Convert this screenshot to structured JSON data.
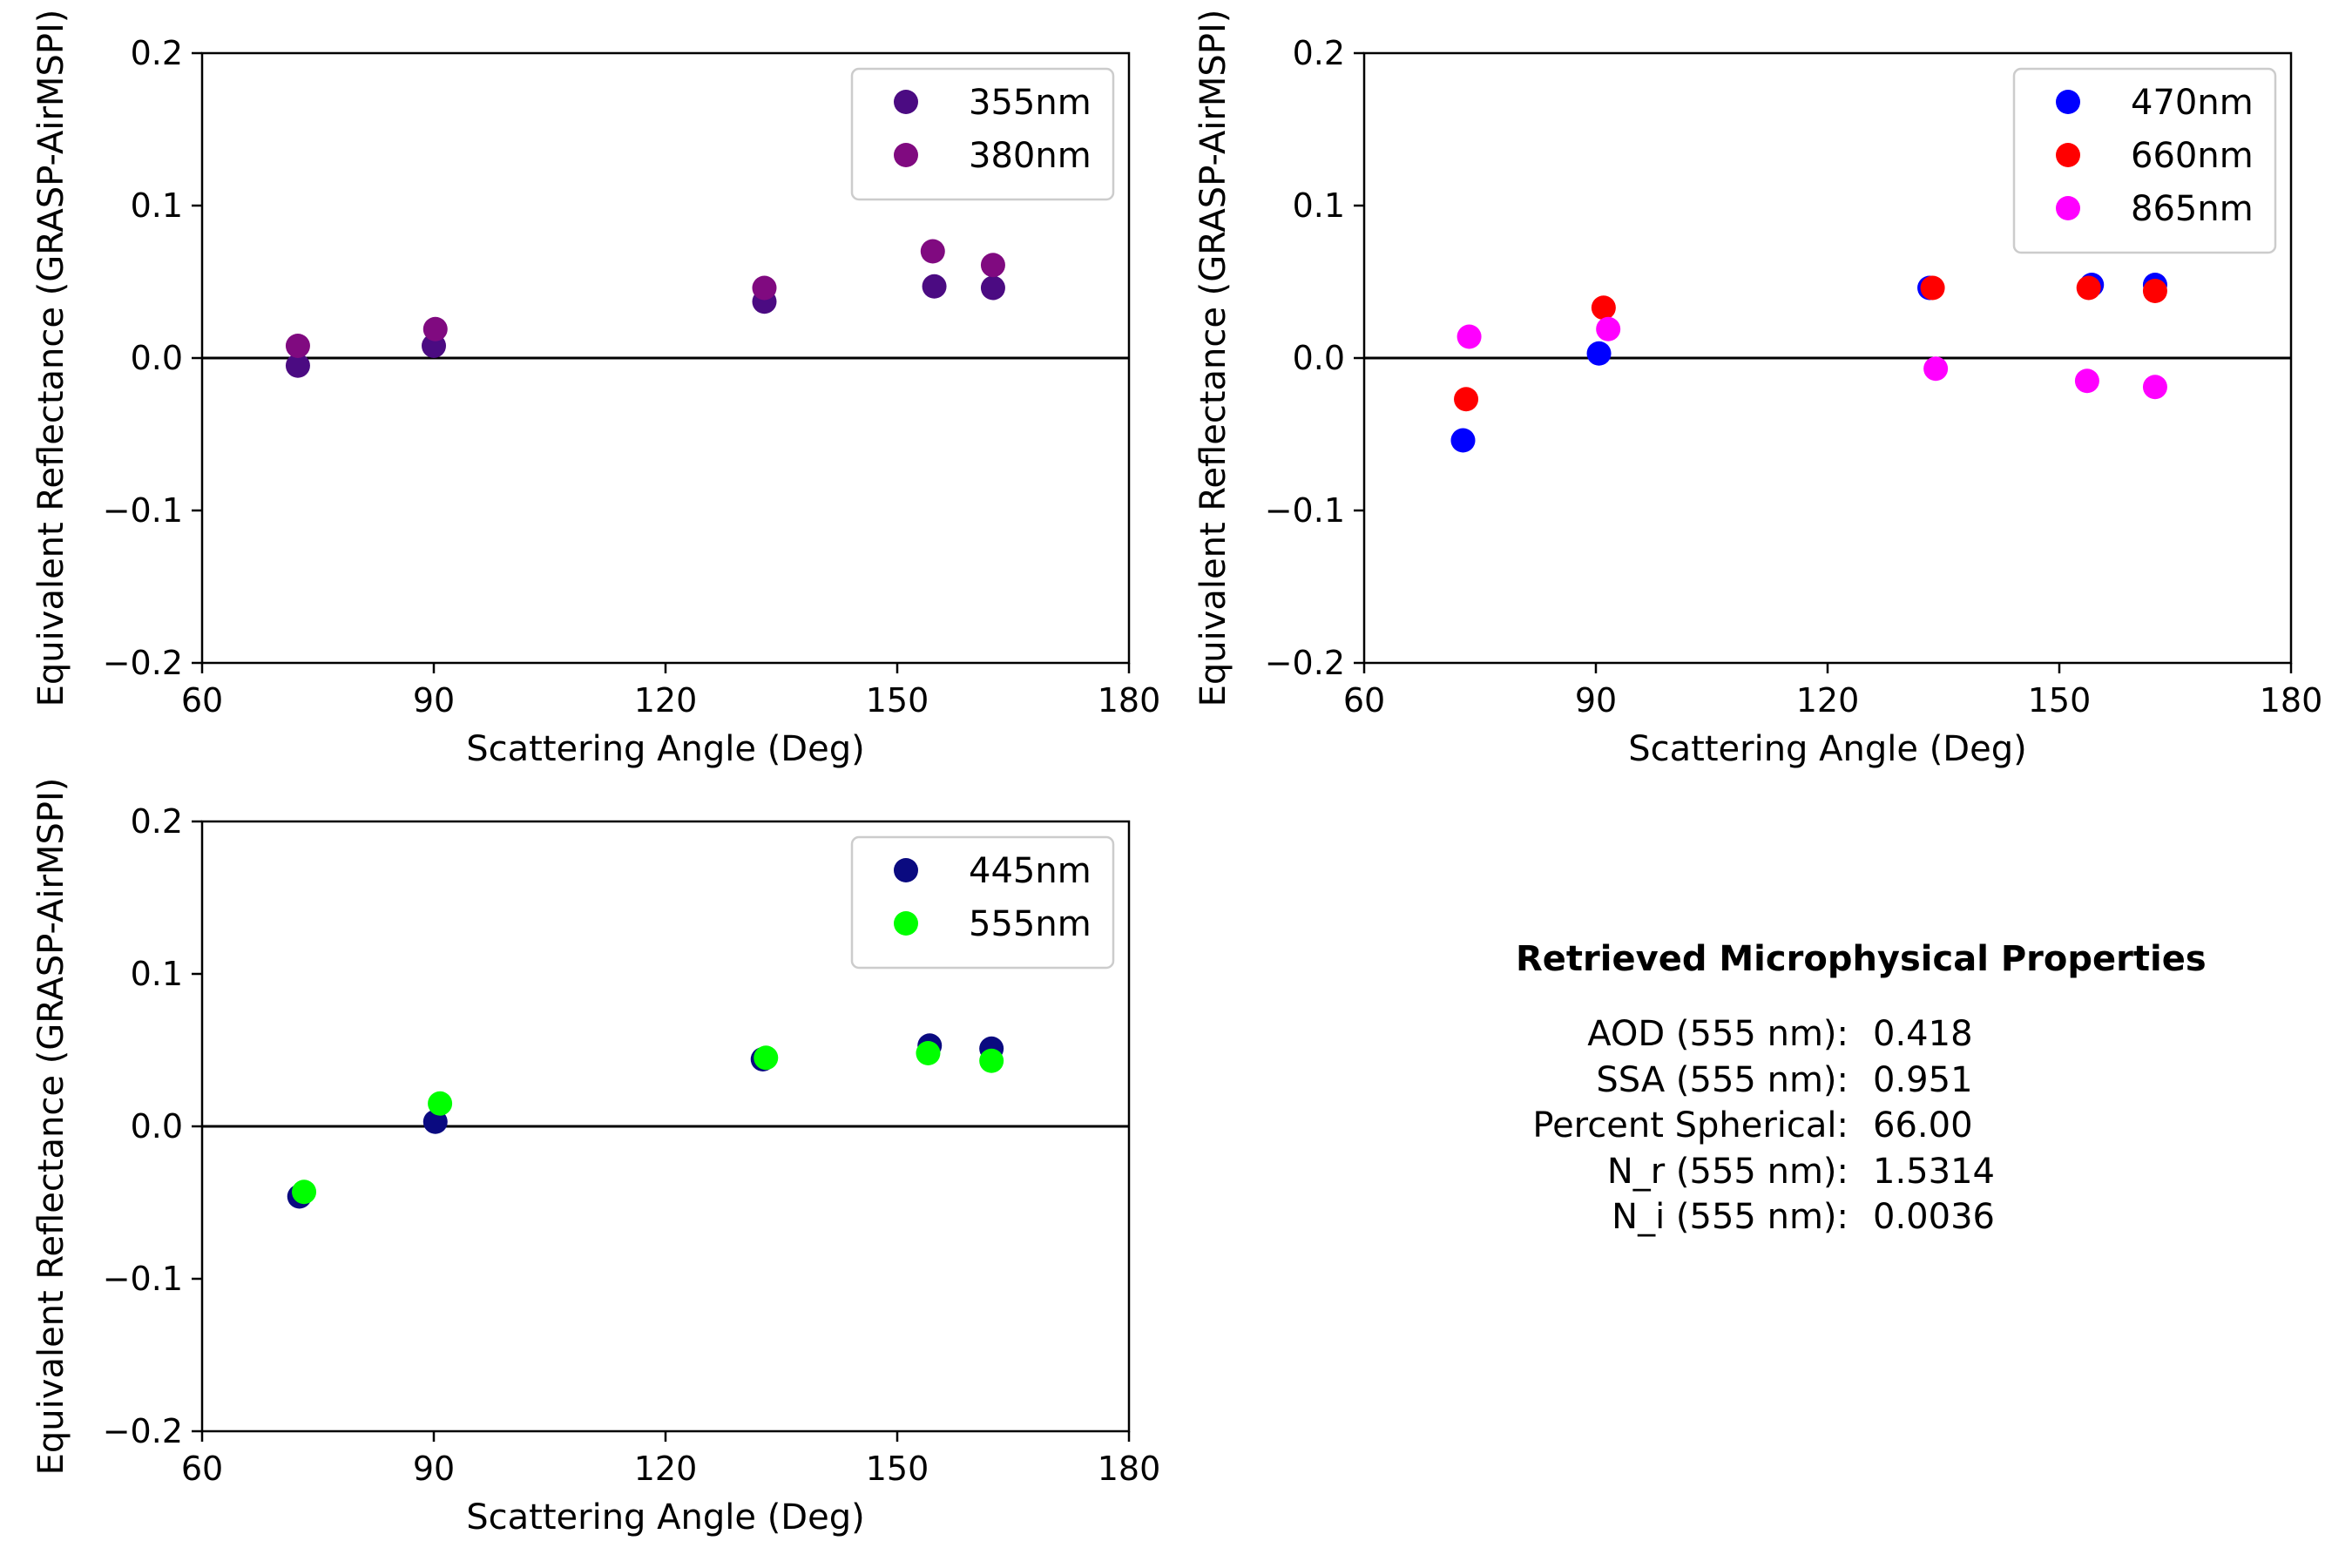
{
  "chart_data": [
    {
      "type": "scatter",
      "xlabel": "Scattering Angle (Deg)",
      "ylabel": "Equivalent Reflectance (GRASP-AirMSPI)",
      "xlim": [
        60,
        180
      ],
      "ylim": [
        -0.2,
        0.2
      ],
      "xticks": [
        "60",
        "90",
        "120",
        "150",
        "180"
      ],
      "yticks": [
        "−0.2",
        "−0.1",
        "0.0",
        "0.1",
        "0.2"
      ],
      "legend_position": "top-right",
      "zero_line": true,
      "series": [
        {
          "name": "355nm",
          "color": "#4b0b82",
          "points": [
            [
              72.4,
              -0.005
            ],
            [
              90.0,
              0.008
            ],
            [
              132.8,
              0.037
            ],
            [
              154.8,
              0.047
            ],
            [
              162.4,
              0.046
            ]
          ]
        },
        {
          "name": "380nm",
          "color": "#800a80",
          "points": [
            [
              72.4,
              0.008
            ],
            [
              90.2,
              0.019
            ],
            [
              132.8,
              0.046
            ],
            [
              154.6,
              0.07
            ],
            [
              162.4,
              0.061
            ]
          ]
        }
      ]
    },
    {
      "type": "scatter",
      "xlabel": "Scattering Angle (Deg)",
      "ylabel": "Equivalent Reflectance (GRASP-AirMSPI)",
      "xlim": [
        60,
        180
      ],
      "ylim": [
        -0.2,
        0.2
      ],
      "xticks": [
        "60",
        "90",
        "120",
        "150",
        "180"
      ],
      "yticks": [
        "−0.2",
        "−0.1",
        "0.0",
        "0.1",
        "0.2"
      ],
      "legend_position": "top-right",
      "zero_line": true,
      "series": [
        {
          "name": "470nm",
          "color": "#0000ff",
          "points": [
            [
              72.8,
              -0.054
            ],
            [
              90.4,
              0.003
            ],
            [
              133.2,
              0.046
            ],
            [
              154.2,
              0.048
            ],
            [
              162.4,
              0.048
            ]
          ]
        },
        {
          "name": "660nm",
          "color": "#ff0000",
          "points": [
            [
              73.2,
              -0.027
            ],
            [
              91.0,
              0.033
            ],
            [
              133.6,
              0.046
            ],
            [
              153.8,
              0.046
            ],
            [
              162.4,
              0.044
            ]
          ]
        },
        {
          "name": "865nm",
          "color": "#ff00ff",
          "points": [
            [
              73.6,
              0.014
            ],
            [
              91.6,
              0.019
            ],
            [
              134.0,
              -0.007
            ],
            [
              153.6,
              -0.015
            ],
            [
              162.4,
              -0.019
            ]
          ]
        }
      ]
    },
    {
      "type": "scatter",
      "xlabel": "Scattering Angle (Deg)",
      "ylabel": "Equivalent Reflectance (GRASP-AirMSPI)",
      "xlim": [
        60,
        180
      ],
      "ylim": [
        -0.2,
        0.2
      ],
      "xticks": [
        "60",
        "90",
        "120",
        "150",
        "180"
      ],
      "yticks": [
        "−0.2",
        "−0.1",
        "0.0",
        "0.1",
        "0.2"
      ],
      "legend_position": "top-right",
      "zero_line": true,
      "series": [
        {
          "name": "445nm",
          "color": "#0a0a80",
          "points": [
            [
              72.6,
              -0.046
            ],
            [
              90.2,
              0.003
            ],
            [
              132.6,
              0.044
            ],
            [
              154.2,
              0.053
            ],
            [
              162.2,
              0.051
            ]
          ]
        },
        {
          "name": "555nm",
          "color": "#00ff00",
          "points": [
            [
              73.2,
              -0.043
            ],
            [
              90.8,
              0.015
            ],
            [
              133.0,
              0.045
            ],
            [
              154.0,
              0.048
            ],
            [
              162.2,
              0.043
            ]
          ]
        }
      ]
    }
  ],
  "properties": {
    "title": "Retrieved Microphysical Properties",
    "rows": [
      {
        "label": "AOD (555 nm):",
        "value": "0.418"
      },
      {
        "label": "SSA (555 nm):",
        "value": "0.951"
      },
      {
        "label": "Percent Spherical:",
        "value": "66.00"
      },
      {
        "label": "N_r (555 nm):",
        "value": "1.5314"
      },
      {
        "label": "N_i (555 nm):",
        "value": "0.0036"
      }
    ]
  }
}
